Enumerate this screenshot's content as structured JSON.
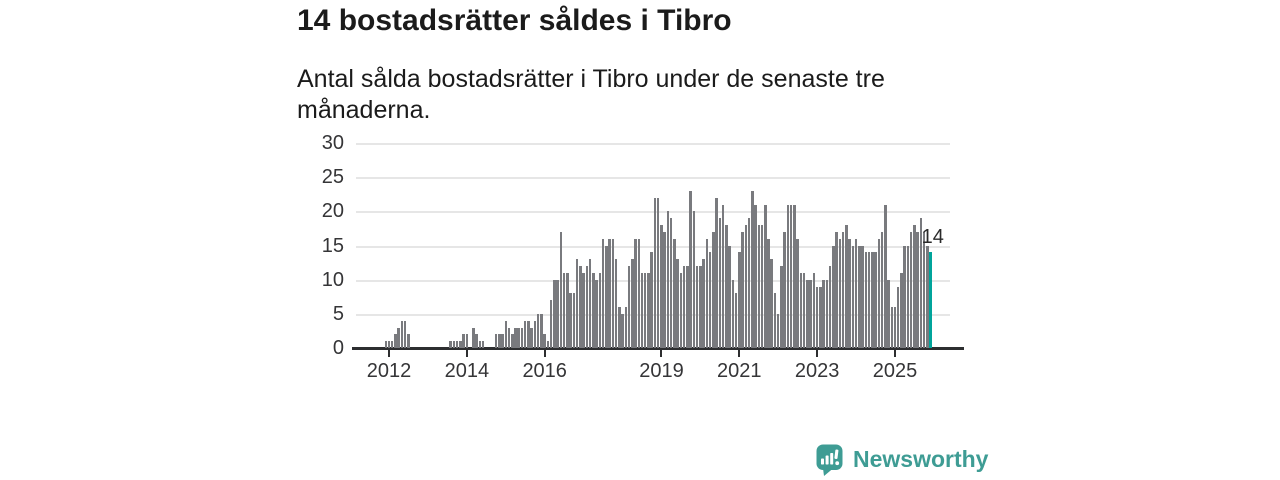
{
  "header": {
    "title": "14 bostadsrätter såldes i Tibro",
    "subtitle": "Antal sålda bostadsrätter i Tibro under de senaste tre månaderna."
  },
  "annotation": {
    "label": "14"
  },
  "branding": {
    "wordmark": "Newsworthy",
    "logo_icon": "speech-bubble-bar-chart-icon",
    "color": "#3e9c94"
  },
  "colors": {
    "bar": "#797a7e",
    "highlight_bar": "#00a49b",
    "grid": "#e6e6e6",
    "axis": "#2d2e30",
    "text": "#1b1b1b",
    "tick_text": "#353537"
  },
  "chart_data": {
    "type": "bar",
    "title": "14 bostadsrätter såldes i Tibro",
    "subtitle": "Antal sålda bostadsrätter i Tibro under de senaste tre månaderna.",
    "xlabel": "",
    "ylabel": "",
    "ylim": [
      0,
      30
    ],
    "y_ticks": [
      0,
      5,
      10,
      15,
      20,
      25,
      30
    ],
    "x_ticks": [
      {
        "label": "2012",
        "month": "2012-01"
      },
      {
        "label": "2014",
        "month": "2014-01"
      },
      {
        "label": "2016",
        "month": "2016-01"
      },
      {
        "label": "2019",
        "month": "2019-01"
      },
      {
        "label": "2021",
        "month": "2021-01"
      },
      {
        "label": "2023",
        "month": "2023-01"
      },
      {
        "label": "2025",
        "month": "2025-01"
      }
    ],
    "grid": "horizontal",
    "legend": "none",
    "frequency": "monthly",
    "start_month": "2011-08",
    "highlight": {
      "index": 172,
      "value": 14,
      "label": "14"
    },
    "values": [
      0,
      0,
      0,
      0,
      1,
      1,
      1,
      2,
      3,
      4,
      4,
      2,
      0,
      0,
      0,
      0,
      0,
      0,
      0,
      0,
      0,
      0,
      0,
      0,
      1,
      1,
      1,
      1,
      2,
      2,
      0,
      3,
      2,
      1,
      1,
      0,
      0,
      0,
      2,
      2,
      2,
      4,
      3,
      2,
      3,
      3,
      3,
      4,
      4,
      3,
      4,
      5,
      5,
      2,
      1,
      7,
      10,
      10,
      17,
      11,
      11,
      8,
      8,
      13,
      12,
      11,
      12,
      13,
      11,
      10,
      11,
      16,
      15,
      16,
      16,
      13,
      6,
      5,
      6,
      12,
      13,
      16,
      16,
      11,
      11,
      11,
      14,
      22,
      22,
      18,
      17,
      20,
      19,
      16,
      13,
      11,
      12,
      12,
      23,
      20,
      12,
      12,
      13,
      16,
      14,
      17,
      22,
      19,
      21,
      18,
      15,
      10,
      8,
      14,
      17,
      18,
      19,
      23,
      21,
      18,
      18,
      21,
      16,
      13,
      8,
      5,
      12,
      17,
      21,
      21,
      21,
      16,
      11,
      11,
      10,
      10,
      11,
      9,
      9,
      10,
      10,
      12,
      15,
      17,
      16,
      17,
      18,
      16,
      15,
      16,
      15,
      15,
      14,
      14,
      14,
      14,
      16,
      17,
      21,
      10,
      6,
      6,
      9,
      11,
      15,
      15,
      17,
      18,
      17,
      19,
      17,
      15,
      14
    ]
  }
}
